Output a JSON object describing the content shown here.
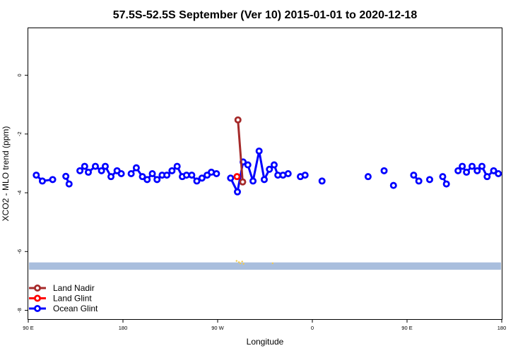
{
  "chart_data": {
    "type": "line",
    "title": "57.5S-52.5S September (Ver 10)   2015-01-01 to 2020-12-18",
    "xlabel": "Longitude",
    "ylabel": "XCO2 - MLO trend (ppm)",
    "xlim": [
      0,
      450
    ],
    "ylim": [
      -8.3,
      1.6
    ],
    "x_ticks": [
      {
        "value": 0,
        "label": "90 E"
      },
      {
        "value": 90,
        "label": "180"
      },
      {
        "value": 180,
        "label": "90 W"
      },
      {
        "value": 270,
        "label": "0"
      },
      {
        "value": 360,
        "label": "90 E"
      },
      {
        "value": 450,
        "label": "180"
      }
    ],
    "y_ticks": [
      {
        "value": 0,
        "label": "0"
      },
      {
        "value": -2,
        "label": "-2"
      },
      {
        "value": -4,
        "label": "-4"
      },
      {
        "value": -6,
        "label": "-6"
      },
      {
        "value": -8,
        "label": "-8"
      }
    ],
    "grid": false,
    "legend_position": "bottom-left",
    "land_band": {
      "ymin": -6.62,
      "ymax": -6.37,
      "color": "#a9bedd"
    },
    "series": [
      {
        "name": "Land Nadir",
        "color": "#a52a2a",
        "segments": [
          [
            [
              199.3,
              -1.52
            ],
            [
              203.8,
              -3.63
            ]
          ]
        ]
      },
      {
        "name": "Land Glint",
        "color": "#ff0000",
        "segments": [
          [
            [
              198.4,
              -3.45
            ]
          ]
        ]
      },
      {
        "name": "Ocean Glint",
        "color": "#0000ff",
        "segments": [
          [
            [
              7.6,
              -3.4
            ],
            [
              13.4,
              -3.6
            ],
            [
              23.2,
              -3.55
            ]
          ],
          [
            [
              35.7,
              -3.44
            ],
            [
              38.8,
              -3.7
            ]
          ],
          [
            [
              49.1,
              -3.25
            ],
            [
              53.6,
              -3.1
            ],
            [
              57.1,
              -3.3
            ],
            [
              63.8,
              -3.1
            ],
            [
              69.6,
              -3.25
            ],
            [
              73.2,
              -3.1
            ],
            [
              78.6,
              -3.45
            ],
            [
              84.4,
              -3.25
            ],
            [
              88.4,
              -3.35
            ]
          ],
          [
            [
              97.8,
              -3.35
            ],
            [
              102.7,
              -3.15
            ],
            [
              108.5,
              -3.45
            ],
            [
              113.0,
              -3.55
            ],
            [
              117.9,
              -3.35
            ],
            [
              122.4,
              -3.55
            ],
            [
              127.2,
              -3.4
            ],
            [
              131.7,
              -3.4
            ],
            [
              136.6,
              -3.25
            ],
            [
              141.5,
              -3.1
            ],
            [
              146.4,
              -3.45
            ],
            [
              150.4,
              -3.4
            ],
            [
              155.4,
              -3.4
            ],
            [
              160.2,
              -3.6
            ],
            [
              165.1,
              -3.5
            ],
            [
              170.0,
              -3.4
            ],
            [
              174.0,
              -3.3
            ],
            [
              178.9,
              -3.35
            ]
          ],
          [
            [
              192.3,
              -3.5
            ],
            [
              198.8,
              -3.97
            ],
            [
              204.2,
              -2.95
            ],
            [
              208.7,
              -3.05
            ],
            [
              213.6,
              -3.6
            ],
            [
              219.4,
              -2.58
            ],
            [
              224.3,
              -3.55
            ],
            [
              229.2,
              -3.2
            ],
            [
              233.7,
              -3.05
            ],
            [
              237.2,
              -3.4
            ],
            [
              242.1,
              -3.4
            ],
            [
              247.0,
              -3.35
            ]
          ],
          [
            [
              258.6,
              -3.45
            ],
            [
              263.1,
              -3.4
            ]
          ],
          [
            [
              279.2,
              -3.6
            ]
          ],
          [
            [
              323.0,
              -3.45
            ]
          ],
          [
            [
              338.2,
              -3.25
            ]
          ],
          [
            [
              347.1,
              -3.75
            ]
          ],
          [
            [
              366.3,
              -3.4
            ],
            [
              371.2,
              -3.6
            ]
          ],
          [
            [
              381.5,
              -3.55
            ]
          ],
          [
            [
              393.9,
              -3.45
            ],
            [
              397.4,
              -3.7
            ]
          ],
          [
            [
              408.5,
              -3.25
            ],
            [
              412.5,
              -3.1
            ],
            [
              416.5,
              -3.3
            ],
            [
              421.8,
              -3.1
            ],
            [
              426.7,
              -3.25
            ],
            [
              431.2,
              -3.1
            ],
            [
              436.1,
              -3.45
            ],
            [
              442.3,
              -3.25
            ],
            [
              446.8,
              -3.35
            ]
          ]
        ]
      }
    ],
    "scatter_yellow": {
      "color": "#f2c94c",
      "points": [
        [
          198.0,
          -6.32
        ],
        [
          200.2,
          -6.36
        ],
        [
          201.5,
          -6.4
        ],
        [
          203.3,
          -6.34
        ],
        [
          204.6,
          -6.42
        ],
        [
          232.3,
          -6.4
        ]
      ]
    }
  }
}
